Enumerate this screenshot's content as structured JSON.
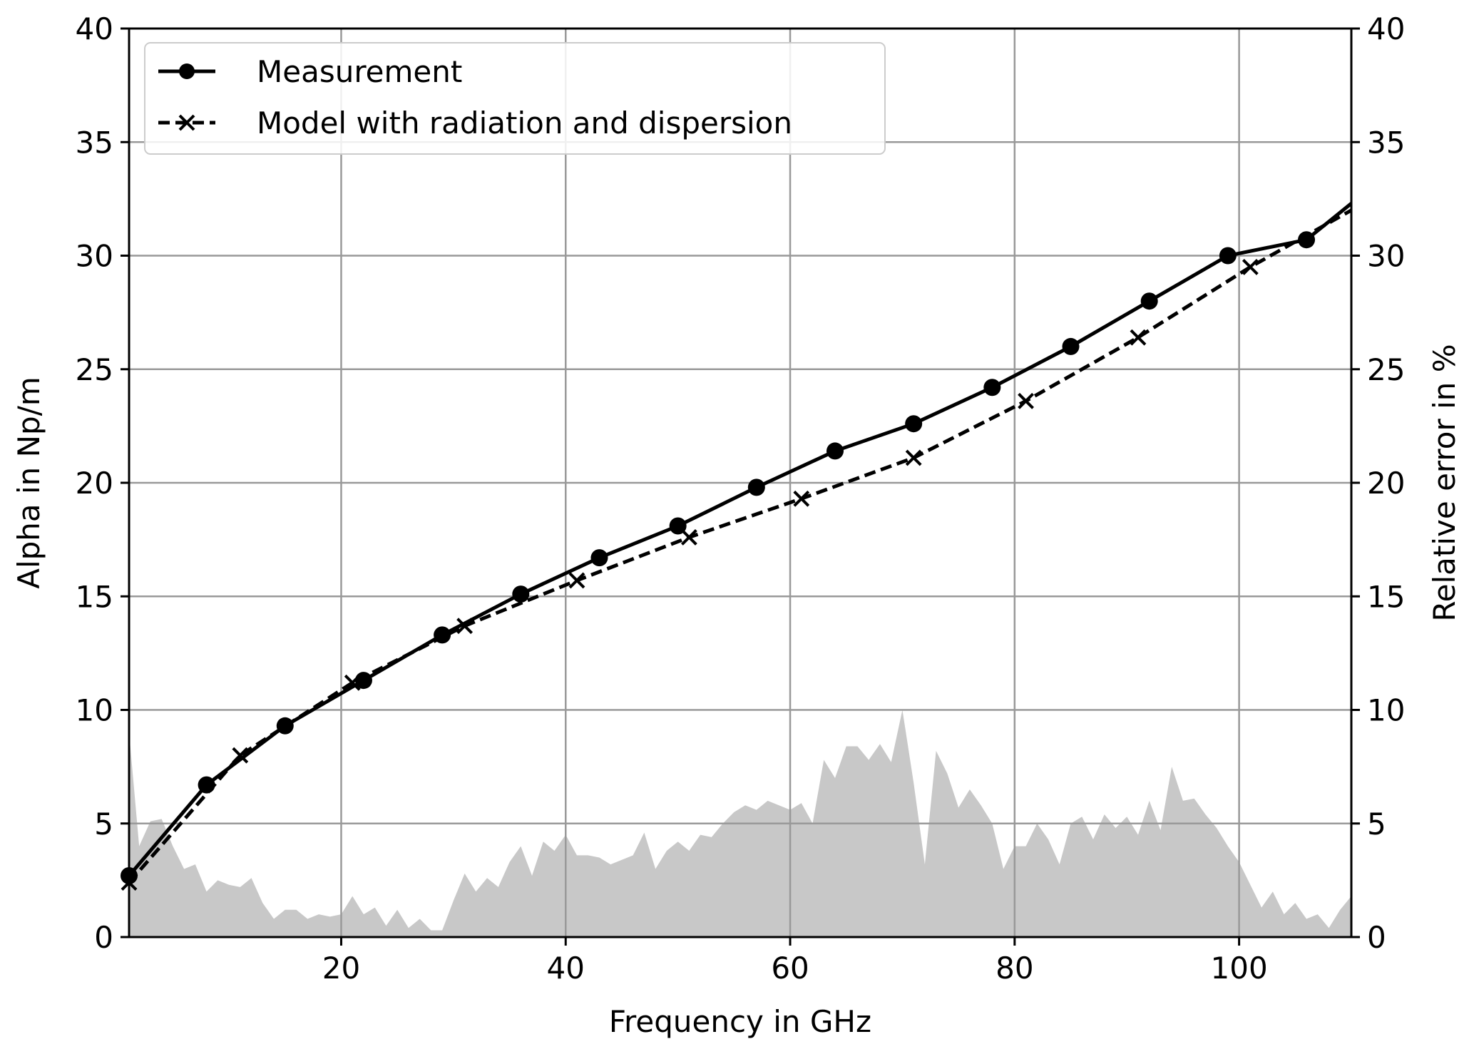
{
  "chart_data": {
    "type": "line",
    "title": "",
    "xlabel": "Frequency in GHz",
    "ylabel": "Alpha in Np/m",
    "y2label": "Relative error in %",
    "xlim": [
      1.1,
      110
    ],
    "ylim": [
      0,
      40
    ],
    "y2lim": [
      0,
      40
    ],
    "xticks": [
      20,
      40,
      60,
      80,
      100
    ],
    "yticks": [
      0,
      5,
      10,
      15,
      20,
      25,
      30,
      35,
      40
    ],
    "y2ticks": [
      0,
      5,
      10,
      15,
      20,
      25,
      30,
      35,
      40
    ],
    "grid": true,
    "legend_position": "top-left",
    "series": [
      {
        "name": "Measurement",
        "style": "solid-circle",
        "color": "#000000",
        "x": [
          1,
          8,
          15,
          22,
          29,
          36,
          43,
          50,
          57,
          64,
          71,
          78,
          85,
          92,
          99,
          106,
          110
        ],
        "y": [
          2.7,
          6.7,
          9.3,
          11.3,
          13.3,
          15.1,
          16.7,
          18.1,
          19.8,
          21.4,
          22.6,
          24.2,
          26.0,
          28.0,
          30.0,
          30.7,
          32.3
        ],
        "markers_x": [
          1,
          8,
          15,
          22,
          29,
          36,
          43,
          50,
          57,
          64,
          71,
          78,
          85,
          92,
          99,
          106
        ]
      },
      {
        "name": "Model with radiation and dispersion",
        "style": "dashed-x",
        "color": "#000000",
        "x": [
          1,
          11,
          21,
          31,
          41,
          51,
          61,
          71,
          81,
          91,
          101,
          110
        ],
        "y": [
          2.4,
          8.0,
          11.2,
          13.7,
          15.7,
          17.6,
          19.3,
          21.1,
          23.6,
          26.4,
          29.5,
          32.0
        ],
        "markers_x": [
          1,
          11,
          21,
          31,
          41,
          51,
          61,
          71,
          81,
          91,
          101
        ]
      },
      {
        "name": "Relative error",
        "style": "area",
        "axis": "right",
        "color": "#c8c8c8",
        "x_start": 1,
        "x_step": 1,
        "y": [
          9,
          4,
          5.1,
          5.2,
          4,
          3,
          3.2,
          2,
          2.5,
          2.3,
          2.2,
          2.6,
          1.5,
          0.8,
          1.2,
          1.2,
          0.8,
          1,
          0.9,
          1,
          1.8,
          1,
          1.3,
          0.5,
          1.2,
          0.4,
          0.8,
          0.3,
          0.3,
          1.6,
          2.8,
          2,
          2.6,
          2.2,
          3.3,
          4,
          2.7,
          4.2,
          3.8,
          4.5,
          3.6,
          3.6,
          3.5,
          3.2,
          3.4,
          3.6,
          4.6,
          3,
          3.8,
          4.2,
          3.8,
          4.5,
          4.4,
          5,
          5.5,
          5.8,
          5.6,
          6,
          5.8,
          5.6,
          5.9,
          5,
          7.8,
          7,
          8.4,
          8.4,
          7.8,
          8.5,
          7.7,
          10,
          6.8,
          3.2,
          8.2,
          7.2,
          5.7,
          6.5,
          5.8,
          5,
          3,
          4,
          4,
          5,
          4.3,
          3.2,
          5,
          5.3,
          4.3,
          5.4,
          4.8,
          5.3,
          4.5,
          6,
          4.7,
          7.5,
          6,
          6.1,
          5.4,
          4.8,
          4,
          3.3,
          2.3,
          1.3,
          2,
          1,
          1.5,
          0.8,
          1,
          0.4,
          1.2,
          1.8
        ]
      }
    ]
  }
}
